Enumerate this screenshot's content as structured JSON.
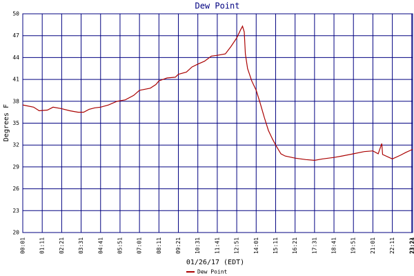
{
  "chart_data": {
    "type": "line",
    "title": "Dew Point",
    "xlabel": "01/26/17 (EDT)",
    "ylabel": "Degrees F",
    "x": [
      "00:01",
      "00:40",
      "01:00",
      "01:30",
      "01:50",
      "02:20",
      "02:50",
      "03:20",
      "03:40",
      "04:00",
      "04:20",
      "04:41",
      "05:10",
      "05:40",
      "06:10",
      "06:40",
      "07:01",
      "07:40",
      "08:00",
      "08:11",
      "08:40",
      "09:10",
      "09:21",
      "09:50",
      "10:10",
      "10:31",
      "10:55",
      "11:20",
      "11:41",
      "12:10",
      "12:30",
      "12:51",
      "13:05",
      "13:12",
      "13:18",
      "13:22",
      "13:30",
      "13:45",
      "14:01",
      "14:15",
      "14:30",
      "14:45",
      "15:00",
      "15:11",
      "15:30",
      "15:45",
      "16:21",
      "17:00",
      "17:31",
      "18:00",
      "18:41",
      "19:10",
      "19:51",
      "20:30",
      "21:01",
      "21:20",
      "21:33",
      "21:36",
      "22:11",
      "22:40",
      "23:00",
      "23:24"
    ],
    "series": [
      {
        "name": "Dew Point",
        "color": "#aa0000",
        "values": [
          37.5,
          37.2,
          36.7,
          36.8,
          37.2,
          37.0,
          36.7,
          36.5,
          36.5,
          36.9,
          37.1,
          37.2,
          37.5,
          38.0,
          38.2,
          38.8,
          39.5,
          39.8,
          40.3,
          40.8,
          41.2,
          41.3,
          41.7,
          42.0,
          42.7,
          43.1,
          43.5,
          44.2,
          44.3,
          44.5,
          45.5,
          46.7,
          47.8,
          48.3,
          47.5,
          44.5,
          42.5,
          40.8,
          39.5,
          37.8,
          35.8,
          34.0,
          32.8,
          32.0,
          30.8,
          30.5,
          30.2,
          30.0,
          29.9,
          30.1,
          30.3,
          30.5,
          30.8,
          31.1,
          31.2,
          30.8,
          32.2,
          30.7,
          30.1,
          30.6,
          31.0,
          31.4
        ]
      }
    ],
    "xlim": [
      "00:01",
      "23:24"
    ],
    "xticks": [
      "00:01",
      "01:11",
      "02:21",
      "03:31",
      "04:41",
      "05:51",
      "07:01",
      "08:11",
      "09:21",
      "10:31",
      "11:41",
      "12:51",
      "14:01",
      "15:11",
      "16:21",
      "17:31",
      "18:41",
      "19:51",
      "21:01",
      "22:11",
      "23:21",
      "23:24"
    ],
    "ylim": [
      20,
      50
    ],
    "yticks": [
      20,
      23,
      26,
      29,
      32,
      35,
      38,
      41,
      44,
      47,
      50
    ],
    "grid": true,
    "grid_color": "#000080",
    "legend": "bottom"
  }
}
